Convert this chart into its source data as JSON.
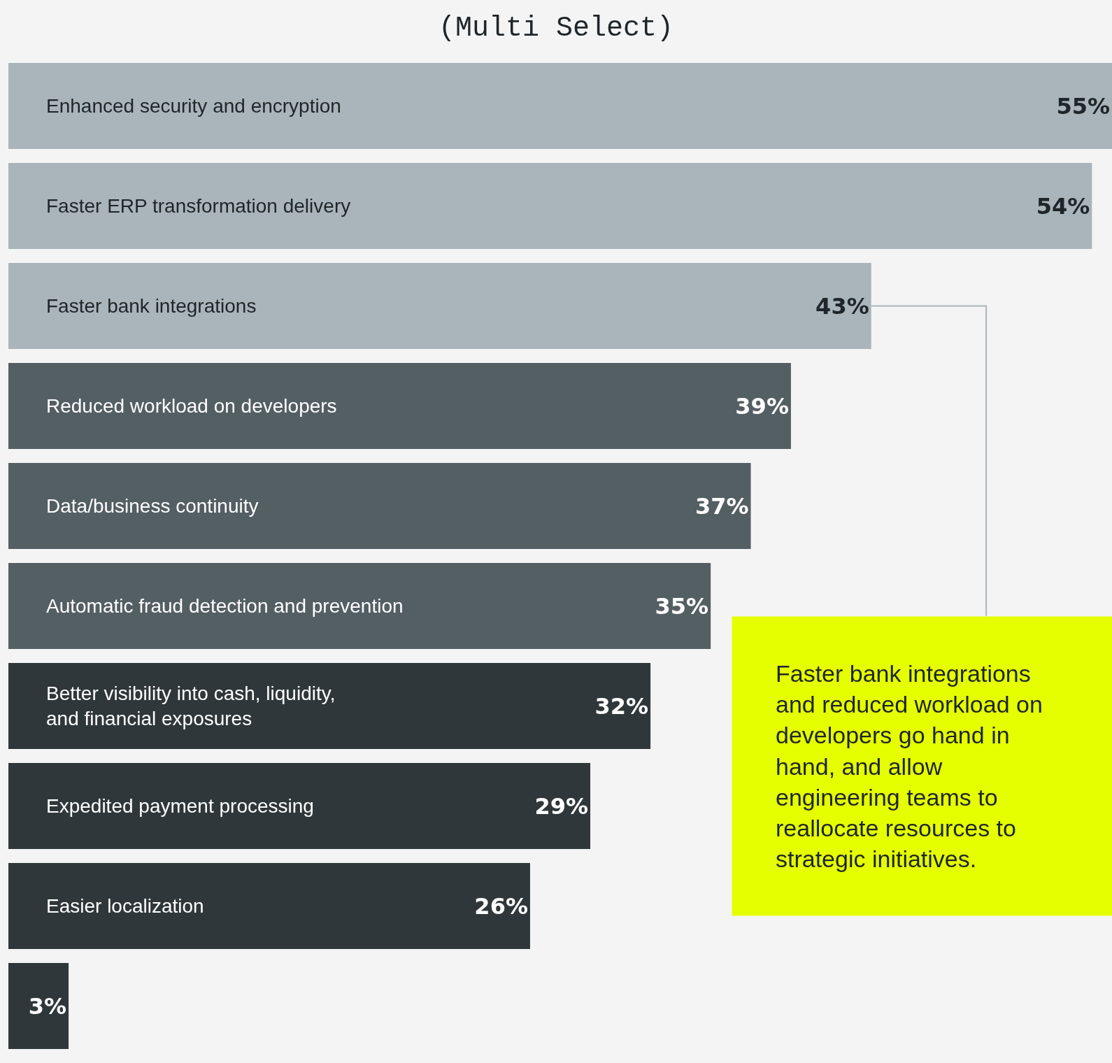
{
  "chart_data": {
    "type": "bar",
    "orientation": "horizontal",
    "title": "(Multi Select)",
    "categories": [
      "Enhanced security and encryption",
      "Faster ERP transformation delivery",
      "Faster bank integrations",
      "Reduced workload on developers",
      "Data/business continuity",
      "Automatic fraud detection and prevention",
      "Better visibility into cash, liquidity, and financial exposures",
      "Expedited payment processing",
      "Easier localization",
      null
    ],
    "values": [
      55,
      54,
      43,
      39,
      37,
      35,
      32,
      29,
      26,
      3
    ],
    "value_labels": [
      "55%",
      "54%",
      "43%",
      "39%",
      "37%",
      "35%",
      "32%",
      "29%",
      "26%",
      "3%"
    ],
    "colors": [
      "#a9b5ba",
      "#a9b5ba",
      "#a9b5ba",
      "#545f64",
      "#545f64",
      "#545f64",
      "#30373a",
      "#30373a",
      "#30373a",
      "#30373a"
    ],
    "annotations": [
      "Faster bank integrations and reduced workload on developers go hand in hand, and allow engineering teams to reallocate resources to strategic initiatives."
    ]
  }
}
